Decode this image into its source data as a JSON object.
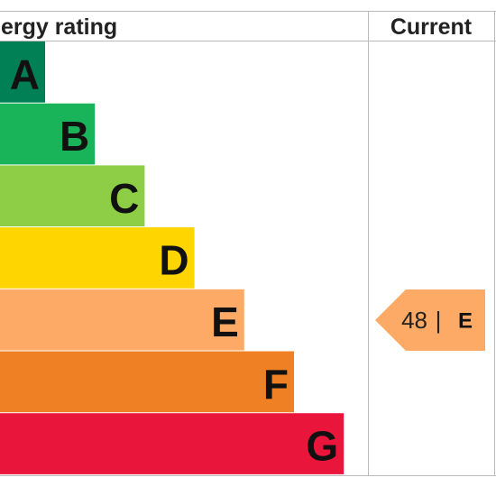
{
  "header": {
    "title": "Energy rating",
    "current": "Current"
  },
  "bands": [
    {
      "letter": "A",
      "color": "#008054"
    },
    {
      "letter": "B",
      "color": "#19b459"
    },
    {
      "letter": "C",
      "color": "#8dce46"
    },
    {
      "letter": "D",
      "color": "#ffd500"
    },
    {
      "letter": "E",
      "color": "#fcaa65"
    },
    {
      "letter": "F",
      "color": "#ef8023"
    },
    {
      "letter": "G",
      "color": "#e9153b"
    }
  ],
  "current": {
    "score": 48,
    "band": "E",
    "color": "#fcaa65"
  }
}
